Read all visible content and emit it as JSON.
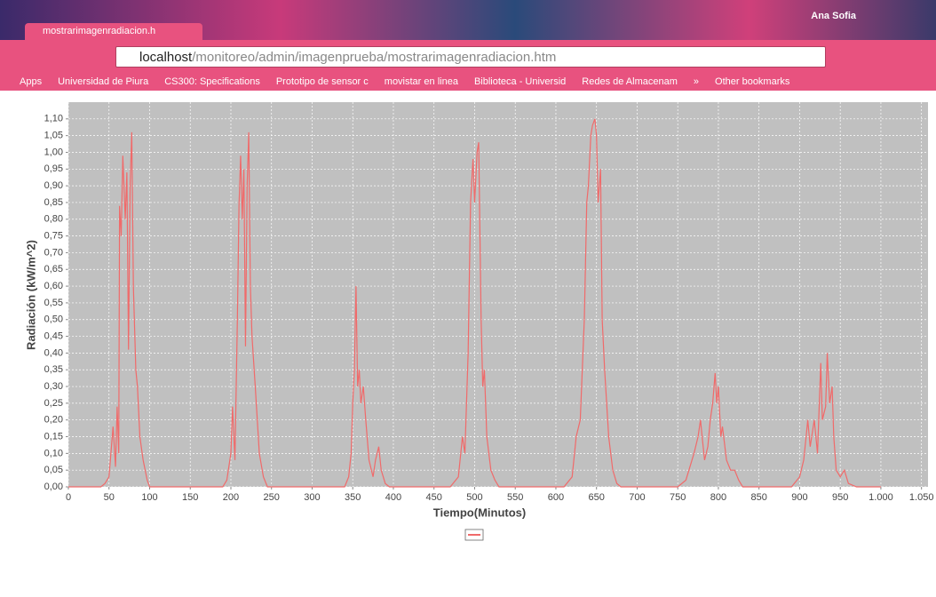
{
  "browser": {
    "tab_title": "mostrarimagenradiacion.h",
    "user": "Ana Sofia",
    "url_host": "localhost",
    "url_path": "/monitoreo/admin/imagenprueba/mostrarimagenradiacion.htm",
    "bookmarks": [
      "Apps",
      "Universidad de Piura",
      "CS300: Specifications",
      "Prototipo de sensor c",
      "movistar en linea",
      "Biblioteca - Universid",
      "Redes de Almacenam",
      "»",
      "Other bookmarks"
    ]
  },
  "chart_data": {
    "type": "line",
    "x_label": "Tiempo(Minutos)",
    "y_label": "Radiación (kW/m^2)",
    "xlim": [
      0,
      1058
    ],
    "ylim": [
      0,
      1.15
    ],
    "grid": true,
    "xticks": [
      0,
      50,
      100,
      150,
      200,
      250,
      300,
      350,
      400,
      450,
      500,
      550,
      600,
      650,
      700,
      750,
      800,
      850,
      900,
      950,
      {
        "value": 1000,
        "label": "1.000"
      },
      {
        "value": 1050,
        "label": "1.050"
      }
    ],
    "yticks": [
      {
        "value": 0,
        "label": "0,00"
      },
      {
        "value": 0.05,
        "label": "0,05"
      },
      {
        "value": 0.1,
        "label": "0,10"
      },
      {
        "value": 0.15,
        "label": "0,15"
      },
      {
        "value": 0.2,
        "label": "0,20"
      },
      {
        "value": 0.25,
        "label": "0,25"
      },
      {
        "value": 0.3,
        "label": "0,30"
      },
      {
        "value": 0.35,
        "label": "0,35"
      },
      {
        "value": 0.4,
        "label": "0,40"
      },
      {
        "value": 0.45,
        "label": "0,45"
      },
      {
        "value": 0.5,
        "label": "0,50"
      },
      {
        "value": 0.55,
        "label": "0,55"
      },
      {
        "value": 0.6,
        "label": "0,60"
      },
      {
        "value": 0.65,
        "label": "0,65"
      },
      {
        "value": 0.7,
        "label": "0,70"
      },
      {
        "value": 0.75,
        "label": "0,75"
      },
      {
        "value": 0.8,
        "label": "0,80"
      },
      {
        "value": 0.85,
        "label": "0,85"
      },
      {
        "value": 0.9,
        "label": "0,90"
      },
      {
        "value": 0.95,
        "label": "0,95"
      },
      {
        "value": 1,
        "label": "1,00"
      },
      {
        "value": 1.05,
        "label": "1,05"
      },
      {
        "value": 1.1,
        "label": "1,10"
      }
    ],
    "x": [
      0,
      40,
      45,
      50,
      55,
      58,
      60,
      62,
      63,
      65,
      67,
      70,
      72,
      74,
      76,
      78,
      80,
      83,
      85,
      88,
      92,
      97,
      100,
      190,
      195,
      200,
      202,
      205,
      208,
      210,
      212,
      214,
      216,
      218,
      220,
      222,
      224,
      226,
      230,
      235,
      240,
      245,
      340,
      345,
      348,
      350,
      352,
      354,
      356,
      358,
      360,
      363,
      366,
      370,
      375,
      378,
      382,
      385,
      390,
      395,
      470,
      480,
      485,
      488,
      492,
      495,
      498,
      500,
      503,
      505,
      508,
      510,
      512,
      515,
      520,
      525,
      530,
      610,
      620,
      625,
      630,
      635,
      638,
      640,
      643,
      645,
      648,
      650,
      652,
      655,
      657,
      660,
      665,
      670,
      675,
      680,
      750,
      760,
      765,
      770,
      775,
      778,
      780,
      783,
      787,
      790,
      793,
      796,
      798,
      800,
      803,
      805,
      810,
      815,
      820,
      825,
      830,
      890,
      900,
      905,
      908,
      910,
      913,
      918,
      922,
      926,
      928,
      932,
      934,
      937,
      940,
      942,
      945,
      950,
      955,
      960,
      970,
      1000
    ],
    "series": [
      {
        "color": "#f06a6a",
        "values": [
          0,
          0,
          0.01,
          0.03,
          0.18,
          0.06,
          0.24,
          0.1,
          0.84,
          0.75,
          0.99,
          0.8,
          0.94,
          0.41,
          0.9,
          1.06,
          0.6,
          0.35,
          0.3,
          0.15,
          0.08,
          0.02,
          0,
          0,
          0.02,
          0.1,
          0.24,
          0.08,
          0.5,
          0.84,
          0.99,
          0.8,
          0.95,
          0.42,
          0.9,
          1.06,
          0.6,
          0.45,
          0.3,
          0.1,
          0.03,
          0,
          0,
          0.03,
          0.1,
          0.25,
          0.35,
          0.6,
          0.3,
          0.35,
          0.25,
          0.3,
          0.2,
          0.08,
          0.03,
          0.08,
          0.12,
          0.05,
          0.01,
          0,
          0,
          0.03,
          0.15,
          0.1,
          0.4,
          0.85,
          0.98,
          0.85,
          1.0,
          1.03,
          0.5,
          0.3,
          0.35,
          0.15,
          0.05,
          0.02,
          0,
          0,
          0.03,
          0.15,
          0.2,
          0.5,
          0.85,
          0.9,
          1.05,
          1.08,
          1.1,
          1.05,
          0.85,
          0.95,
          0.5,
          0.35,
          0.15,
          0.05,
          0.01,
          0,
          0,
          0.02,
          0.06,
          0.1,
          0.15,
          0.2,
          0.15,
          0.08,
          0.12,
          0.2,
          0.25,
          0.34,
          0.25,
          0.3,
          0.15,
          0.18,
          0.08,
          0.05,
          0.05,
          0.02,
          0,
          0,
          0.03,
          0.08,
          0.15,
          0.2,
          0.12,
          0.2,
          0.1,
          0.37,
          0.2,
          0.24,
          0.4,
          0.25,
          0.3,
          0.15,
          0.05,
          0.03,
          0.05,
          0.01,
          0,
          0
        ]
      }
    ]
  }
}
